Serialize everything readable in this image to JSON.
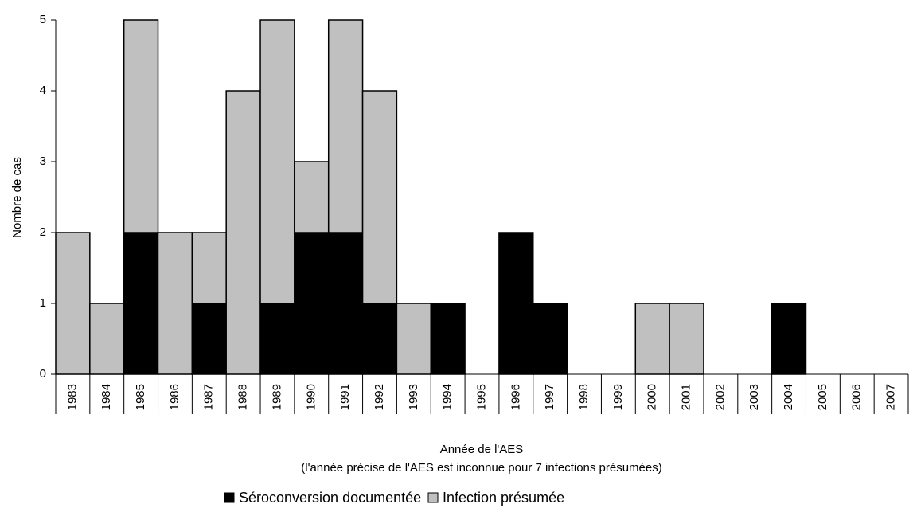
{
  "chart_data": {
    "type": "stacked_bar",
    "categories": [
      "1983",
      "1984",
      "1985",
      "1986",
      "1987",
      "1988",
      "1989",
      "1990",
      "1991",
      "1992",
      "1993",
      "1994",
      "1995",
      "1996",
      "1997",
      "1998",
      "1999",
      "2000",
      "2001",
      "2002",
      "2003",
      "2004",
      "2005",
      "2006",
      "2007"
    ],
    "series": [
      {
        "name": "Séroconversion documentée",
        "color": "#000000",
        "values": [
          0,
          0,
          2,
          0,
          1,
          0,
          1,
          2,
          2,
          1,
          0,
          1,
          0,
          2,
          1,
          0,
          0,
          0,
          0,
          0,
          0,
          1,
          0,
          0,
          0
        ]
      },
      {
        "name": "Infection présumée",
        "color": "#c0c0c0",
        "values": [
          2,
          1,
          3,
          2,
          1,
          4,
          4,
          1,
          3,
          3,
          1,
          0,
          0,
          0,
          0,
          0,
          0,
          1,
          1,
          0,
          0,
          0,
          0,
          0,
          0
        ]
      }
    ],
    "y_label": "Nombre de cas",
    "x_label": "Année de l'AES",
    "x_label_note": "(l'année précise de l'AES est inconnue pour 7 infections présumées)",
    "ylim": [
      0,
      5
    ],
    "yticks": [
      0,
      1,
      2,
      3,
      4,
      5
    ],
    "grid": false,
    "legend": "bottom"
  }
}
